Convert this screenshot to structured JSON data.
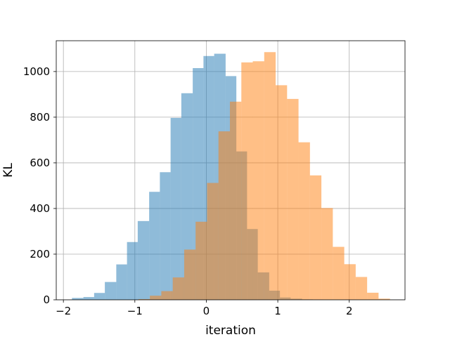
{
  "chart_data": {
    "type": "histogram",
    "title": "",
    "xlabel": "iteration",
    "ylabel": "KL",
    "xlim": [
      -2.1,
      2.78
    ],
    "ylim": [
      0,
      1135
    ],
    "xticks": [
      -2,
      -1,
      0,
      1,
      2
    ],
    "yticks": [
      0,
      200,
      400,
      600,
      800,
      1000
    ],
    "xtick_labels": [
      "−2",
      "−1",
      "0",
      "1",
      "2"
    ],
    "ytick_labels": [
      "0",
      "200",
      "400",
      "600",
      "800",
      "1000"
    ],
    "grid": true,
    "series": [
      {
        "color": "#1f77b4",
        "alpha": 0.5,
        "edges": [
          -1.88,
          -1.72,
          -1.57,
          -1.42,
          -1.26,
          -1.11,
          -0.96,
          -0.8,
          -0.65,
          -0.5,
          -0.35,
          -0.19,
          -0.04,
          0.11,
          0.27,
          0.42,
          0.57,
          0.72,
          0.88,
          1.03,
          1.18,
          1.34,
          1.49,
          1.64,
          1.8,
          1.95,
          2.1
        ],
        "counts": [
          8,
          12,
          30,
          78,
          155,
          253,
          345,
          473,
          559,
          797,
          905,
          1015,
          1068,
          1078,
          980,
          650,
          310,
          120,
          40,
          10,
          5,
          2,
          1,
          0,
          0,
          1
        ]
      },
      {
        "color": "#ff7f0e",
        "alpha": 0.5,
        "edges": [
          -0.95,
          -0.79,
          -0.63,
          -0.47,
          -0.31,
          -0.15,
          0.01,
          0.17,
          0.33,
          0.49,
          0.65,
          0.81,
          0.97,
          1.13,
          1.29,
          1.45,
          1.61,
          1.77,
          1.93,
          2.09,
          2.25,
          2.41,
          2.57
        ],
        "counts": [
          3,
          18,
          38,
          98,
          220,
          342,
          512,
          738,
          868,
          1040,
          1045,
          1085,
          940,
          880,
          690,
          545,
          402,
          232,
          156,
          100,
          31,
          5
        ]
      }
    ]
  }
}
